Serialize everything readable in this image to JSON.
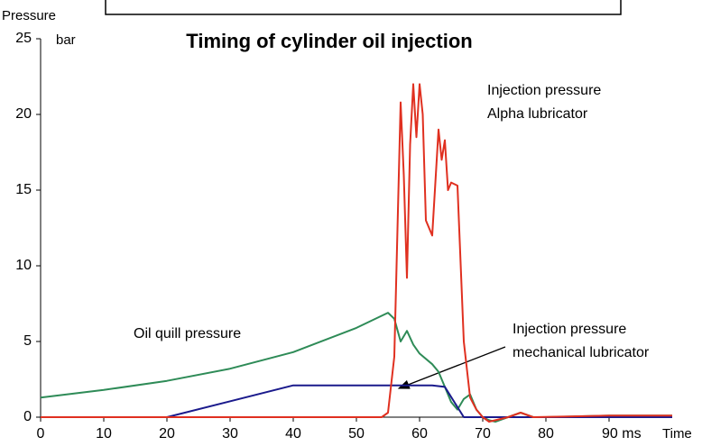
{
  "chart_data": {
    "type": "line",
    "title": "Timing of cylinder oil injection",
    "y_label": [
      "Pressure",
      "bar"
    ],
    "x_label": "Time",
    "xlim": [
      0,
      100
    ],
    "ylim": [
      0,
      25
    ],
    "xticks": [
      0,
      10,
      20,
      30,
      40,
      50,
      60,
      70,
      80,
      {
        "value": 90,
        "label": "90 ms"
      }
    ],
    "yticks": [
      0,
      5,
      10,
      15,
      20,
      25
    ],
    "annotations": [
      {
        "text": [
          "Injection pressure",
          "Alpha lubricator"
        ]
      },
      {
        "text": [
          "Oil quill pressure"
        ]
      },
      {
        "text": [
          "Injection pressure",
          "mechanical lubricator"
        ]
      }
    ],
    "series": [
      {
        "color": "#2e8b57",
        "x": [
          0,
          10,
          20,
          30,
          40,
          50,
          55,
          56,
          57,
          58,
          59,
          60,
          62,
          63,
          64,
          65,
          66,
          67,
          68,
          69,
          70,
          71,
          72,
          74,
          76,
          78,
          80,
          90,
          100
        ],
        "values": [
          1.3,
          1.8,
          2.4,
          3.2,
          4.3,
          5.9,
          6.9,
          6.5,
          5.0,
          5.7,
          4.8,
          4.2,
          3.5,
          3.0,
          2.0,
          1.0,
          0.5,
          1.2,
          1.5,
          0.5,
          0,
          -0.2,
          -0.3,
          0,
          0.3,
          0,
          0,
          0.1,
          0.1
        ]
      },
      {
        "color": "#1a1a8c",
        "x": [
          0,
          20,
          40,
          62,
          64,
          67,
          100
        ],
        "values": [
          0,
          0,
          2.1,
          2.1,
          2.0,
          0,
          0
        ]
      },
      {
        "color": "#e03020",
        "x": [
          0,
          54,
          55,
          56,
          57,
          57.5,
          58,
          58.5,
          59,
          59.5,
          60,
          60.5,
          61,
          62,
          63,
          63.5,
          64,
          64.5,
          65,
          66,
          67,
          68,
          69,
          70,
          71,
          72,
          74,
          76,
          78,
          90,
          100
        ],
        "values": [
          0,
          0,
          0.3,
          4,
          20.8,
          16,
          9.2,
          18,
          22,
          18.5,
          22,
          20,
          13,
          12,
          19,
          17,
          18.3,
          15,
          15.5,
          15.3,
          5,
          1.3,
          0.5,
          0,
          -0.3,
          -0.2,
          0,
          0.3,
          0,
          0.1,
          0.1
        ]
      }
    ]
  }
}
